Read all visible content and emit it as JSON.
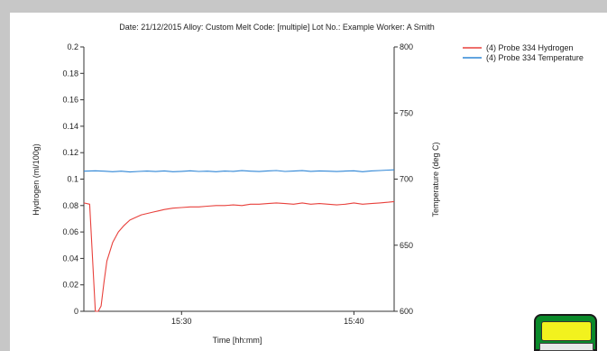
{
  "header": "Date: 21/12/2015   Alloy: Custom   Melt Code: [multiple]   Lot No.: Example   Worker: A Smith",
  "chart_data": {
    "type": "line",
    "title": "",
    "xlabel": "Time [hh:mm]",
    "ylabel": "Hydrogen (ml/100g)",
    "y2label": "Temperature (deg C)",
    "x_ticks": [
      "15:30",
      "15:40"
    ],
    "y_ticks": [
      "0",
      "0.02",
      "0.04",
      "0.06",
      "0.08",
      "0.1",
      "0.12",
      "0.14",
      "0.16",
      "0.18",
      "0.2"
    ],
    "y2_ticks": [
      "600",
      "650",
      "700",
      "750",
      "800"
    ],
    "ylim": [
      0,
      0.2
    ],
    "y2lim": [
      600,
      800
    ],
    "xlim_minutes": [
      15.3,
      15.2
    ],
    "legend_position": "top-right",
    "grid": false,
    "series": [
      {
        "name": "(4) Probe 334 Hydrogen",
        "axis": "left",
        "color": "#e8413c",
        "x": [
          "15:24:20",
          "15:24:40",
          "15:24:50",
          "15:25:00",
          "15:25:10",
          "15:25:20",
          "15:25:30",
          "15:25:40",
          "15:26:00",
          "15:26:20",
          "15:26:40",
          "15:27:00",
          "15:27:20",
          "15:27:40",
          "15:28:00",
          "15:28:20",
          "15:28:40",
          "15:29:00",
          "15:29:30",
          "15:30:00",
          "15:30:30",
          "15:31:00",
          "15:31:30",
          "15:32:00",
          "15:32:30",
          "15:33:00",
          "15:33:30",
          "15:34:00",
          "15:34:30",
          "15:35:00",
          "15:35:30",
          "15:36:00",
          "15:36:30",
          "15:37:00",
          "15:37:30",
          "15:38:00",
          "15:38:30",
          "15:39:00",
          "15:39:30",
          "15:40:00",
          "15:40:30",
          "15:41:00",
          "15:41:30",
          "15:42:00",
          "15:42:20"
        ],
        "values": [
          0.082,
          0.081,
          0.04,
          0.0,
          0.0,
          0.004,
          0.022,
          0.038,
          0.052,
          0.06,
          0.065,
          0.069,
          0.071,
          0.073,
          0.074,
          0.075,
          0.076,
          0.077,
          0.078,
          0.0785,
          0.079,
          0.079,
          0.0795,
          0.08,
          0.08,
          0.0805,
          0.08,
          0.081,
          0.081,
          0.0815,
          0.082,
          0.0815,
          0.081,
          0.082,
          0.081,
          0.0815,
          0.081,
          0.0805,
          0.081,
          0.082,
          0.081,
          0.0815,
          0.082,
          0.0825,
          0.083
        ]
      },
      {
        "name": "(4) Probe 334 Temperature",
        "axis": "right",
        "color": "#2f86d6",
        "x": [
          "15:24:20",
          "15:25:00",
          "15:25:30",
          "15:26:00",
          "15:26:30",
          "15:27:00",
          "15:27:30",
          "15:28:00",
          "15:28:30",
          "15:29:00",
          "15:29:30",
          "15:30:00",
          "15:30:30",
          "15:31:00",
          "15:31:30",
          "15:32:00",
          "15:32:30",
          "15:33:00",
          "15:33:30",
          "15:34:00",
          "15:34:30",
          "15:35:00",
          "15:35:30",
          "15:36:00",
          "15:36:30",
          "15:37:00",
          "15:37:30",
          "15:38:00",
          "15:38:30",
          "15:39:00",
          "15:39:30",
          "15:40:00",
          "15:40:30",
          "15:41:00",
          "15:41:30",
          "15:42:00",
          "15:42:20"
        ],
        "values": [
          706,
          706.3,
          706,
          705.6,
          706,
          705.4,
          705.8,
          706.1,
          705.7,
          706.2,
          705.6,
          705.9,
          706.3,
          705.8,
          706,
          705.6,
          706.1,
          705.9,
          706.4,
          706,
          705.7,
          706.2,
          706.5,
          705.8,
          706.1,
          706.4,
          705.9,
          706.2,
          706,
          705.7,
          706.1,
          706.3,
          705.6,
          706.2,
          706.5,
          706.8,
          707
        ]
      }
    ]
  }
}
